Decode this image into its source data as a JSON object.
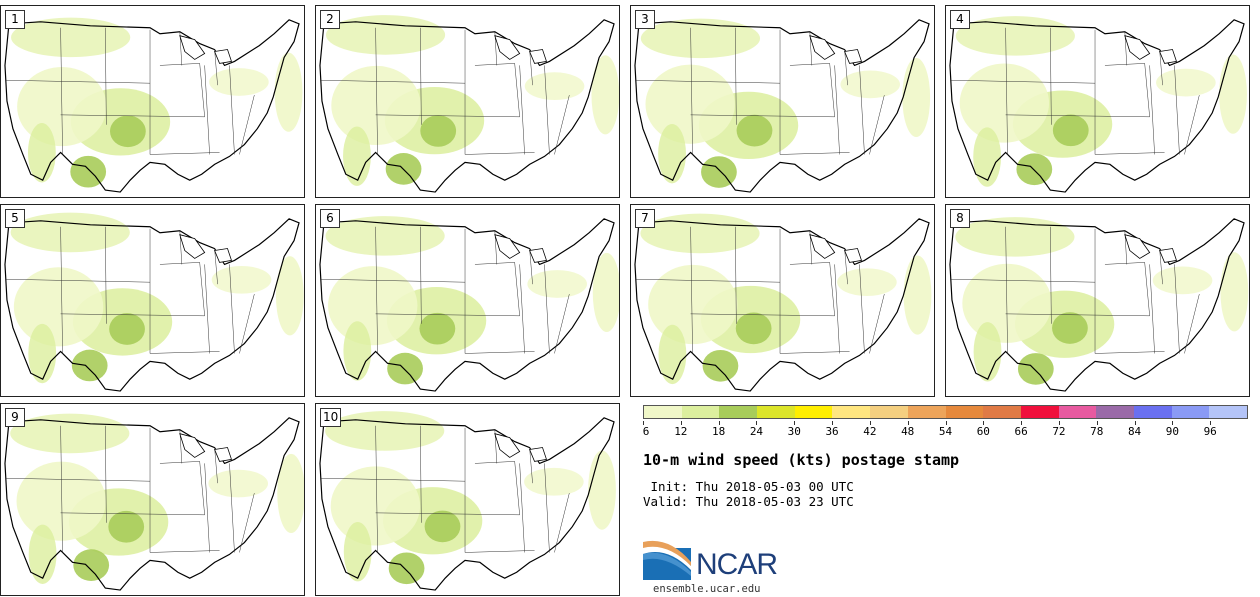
{
  "panels": [
    "1",
    "2",
    "3",
    "4",
    "5",
    "6",
    "7",
    "8",
    "9",
    "10"
  ],
  "colorbar": {
    "colors": [
      "#f0f7c8",
      "#dcef9e",
      "#a8cc5a",
      "#dce52a",
      "#ffee00",
      "#ffe680",
      "#f4cf80",
      "#eda45a",
      "#e6893c",
      "#e07a45",
      "#f0103c",
      "#e85aa0",
      "#9a6aa8",
      "#6a70f0",
      "#8a9af5",
      "#b4c4f8"
    ],
    "ticks": [
      "6",
      "12",
      "18",
      "24",
      "30",
      "36",
      "42",
      "48",
      "54",
      "60",
      "66",
      "72",
      "78",
      "84",
      "90",
      "96"
    ]
  },
  "title": "10-m wind speed (kts) postage stamp",
  "init": " Init: Thu 2018-05-03 00 UTC",
  "valid": "Valid: Thu 2018-05-03 23 UTC",
  "logo": {
    "text": "NCAR",
    "url": "ensemble.ucar.edu",
    "blue": "#1a6fb5",
    "orange": "#e8a05a"
  }
}
